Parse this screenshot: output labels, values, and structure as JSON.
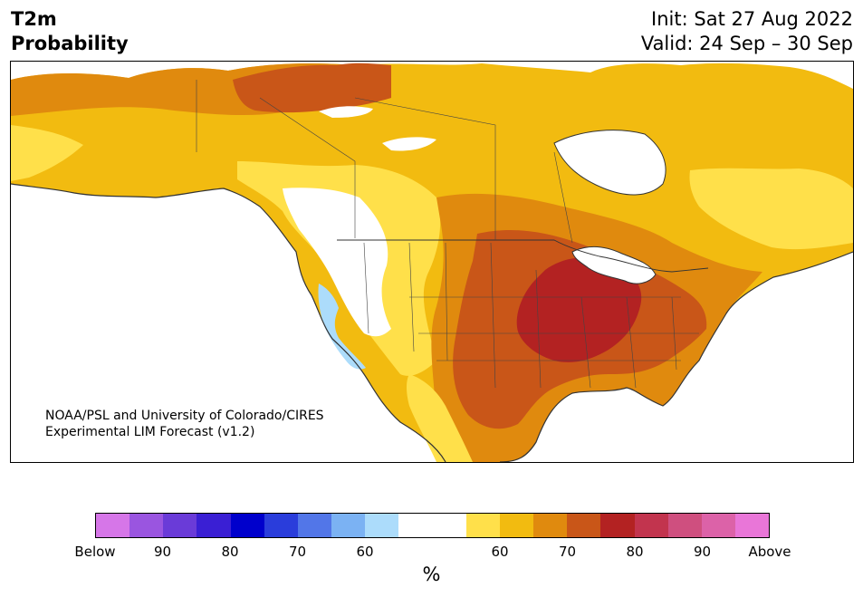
{
  "title": {
    "line1": "T2m",
    "line2": "Probability"
  },
  "subtitle": {
    "init": "Init: Sat 27 Aug 2022",
    "valid": "Valid: 24 Sep – 30 Sep"
  },
  "credit": {
    "line1": "NOAA/PSL and University of Colorado/CIRES",
    "line2": "Experimental LIM Forecast (v1.2)"
  },
  "map": {
    "region": "North America",
    "dominant_category": "Above",
    "highest_probability_area": "Great Lakes / Midwest",
    "below_normal_area": "Pacific Northwest / California coast"
  },
  "colorbar": {
    "colors": [
      "#d676e8",
      "#9a55e0",
      "#6a3bd8",
      "#3a1fd4",
      "#0000cc",
      "#2a3ddb",
      "#5276e8",
      "#7bb2f3",
      "#acdcfb",
      "#ffffff",
      "#ffffff",
      "#ffe04a",
      "#f2bb10",
      "#e08a0e",
      "#c95618",
      "#b32222",
      "#c2344e",
      "#cf4f7f",
      "#dc62a8",
      "#e976d8"
    ],
    "tick_labels": [
      "Below",
      "90",
      "80",
      "70",
      "60",
      "60",
      "70",
      "80",
      "90",
      "Above"
    ],
    "unit": "%"
  }
}
